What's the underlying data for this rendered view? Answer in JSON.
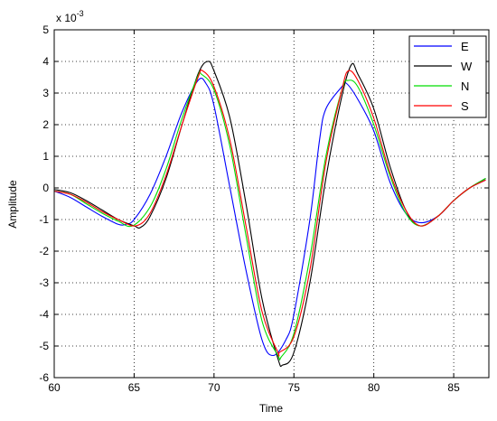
{
  "chart_data": {
    "type": "line",
    "title": "",
    "xlabel": "Time",
    "ylabel": "Amplitude",
    "exponent_label": "x 10",
    "exponent_power": "-3",
    "xlim": [
      60,
      87.2
    ],
    "ylim": [
      -6,
      5
    ],
    "xticks": [
      60,
      65,
      70,
      75,
      80,
      85
    ],
    "xtick_labels": [
      "60",
      "65",
      "70",
      "75",
      "80",
      "85"
    ],
    "yticks": [
      -6,
      -5,
      -4,
      -3,
      -2,
      -1,
      0,
      1,
      2,
      3,
      4,
      5
    ],
    "ytick_labels": [
      "-6",
      "-5",
      "-4",
      "-3",
      "-2",
      "-1",
      "0",
      "1",
      "2",
      "3",
      "4",
      "5"
    ],
    "grid": true,
    "legend_position": "top-right",
    "series": [
      {
        "name": "E",
        "color": "#0000ff",
        "x": [
          60,
          61,
          62,
          63,
          64,
          64.5,
          65,
          66,
          67,
          68,
          69,
          69.5,
          70,
          71,
          72,
          73,
          73.7,
          74.5,
          75,
          76,
          76.6,
          77,
          78,
          78.3,
          79,
          80,
          81,
          82,
          82.9,
          84,
          85,
          86,
          87
        ],
        "y": [
          -0.1,
          -0.3,
          -0.6,
          -0.9,
          -1.15,
          -1.15,
          -1.0,
          -0.2,
          1.0,
          2.4,
          3.4,
          3.3,
          2.6,
          0.0,
          -2.6,
          -4.8,
          -5.3,
          -4.8,
          -4.0,
          -1.0,
          1.5,
          2.5,
          3.2,
          3.3,
          2.8,
          1.8,
          0.2,
          -0.8,
          -1.1,
          -0.9,
          -0.4,
          0.0,
          0.25
        ]
      },
      {
        "name": "W",
        "color": "#000000",
        "x": [
          60,
          61,
          62,
          63,
          64,
          65,
          65.4,
          66,
          67,
          68,
          69,
          69.6,
          70,
          71,
          72,
          73,
          74,
          74.3,
          75,
          76,
          77,
          78,
          78.6,
          79,
          80,
          81,
          82,
          82.9,
          84,
          85,
          86,
          87
        ],
        "y": [
          -0.05,
          -0.15,
          -0.4,
          -0.7,
          -1.0,
          -1.2,
          -1.25,
          -0.9,
          0.3,
          2.0,
          3.6,
          4.0,
          3.7,
          2.2,
          -0.5,
          -3.5,
          -5.4,
          -5.6,
          -5.2,
          -3.0,
          0.3,
          2.9,
          3.9,
          3.6,
          2.5,
          0.7,
          -0.7,
          -1.2,
          -0.9,
          -0.4,
          0.0,
          0.3
        ]
      },
      {
        "name": "N",
        "color": "#00dd00",
        "x": [
          60,
          61,
          62,
          63,
          64,
          64.9,
          66,
          67,
          68,
          69,
          69.2,
          70,
          71,
          72,
          73,
          74,
          74.2,
          75,
          76,
          77,
          78,
          78.4,
          79,
          80,
          81,
          82,
          82.9,
          84,
          85,
          86,
          87
        ],
        "y": [
          -0.1,
          -0.2,
          -0.5,
          -0.8,
          -1.05,
          -1.2,
          -0.6,
          0.6,
          2.2,
          3.55,
          3.6,
          3.1,
          1.3,
          -1.5,
          -4.2,
          -5.3,
          -5.35,
          -4.6,
          -2.2,
          1.0,
          3.1,
          3.4,
          3.2,
          2.0,
          0.4,
          -0.8,
          -1.2,
          -0.9,
          -0.4,
          0.0,
          0.3
        ]
      },
      {
        "name": "S",
        "color": "#ff0000",
        "x": [
          60,
          61,
          62,
          63,
          64,
          65.1,
          66,
          67,
          68,
          69,
          69.3,
          70,
          71,
          72,
          73,
          74,
          74.1,
          75,
          76,
          77,
          78,
          78.4,
          79,
          80,
          81,
          82,
          82.9,
          84,
          85,
          86,
          87
        ],
        "y": [
          -0.1,
          -0.2,
          -0.45,
          -0.75,
          -1.0,
          -1.2,
          -0.8,
          0.4,
          2.0,
          3.5,
          3.7,
          3.2,
          1.5,
          -1.2,
          -3.9,
          -5.2,
          -5.2,
          -4.7,
          -2.6,
          0.8,
          3.1,
          3.7,
          3.4,
          2.2,
          0.5,
          -0.7,
          -1.2,
          -0.9,
          -0.4,
          0.0,
          0.25
        ]
      }
    ]
  }
}
